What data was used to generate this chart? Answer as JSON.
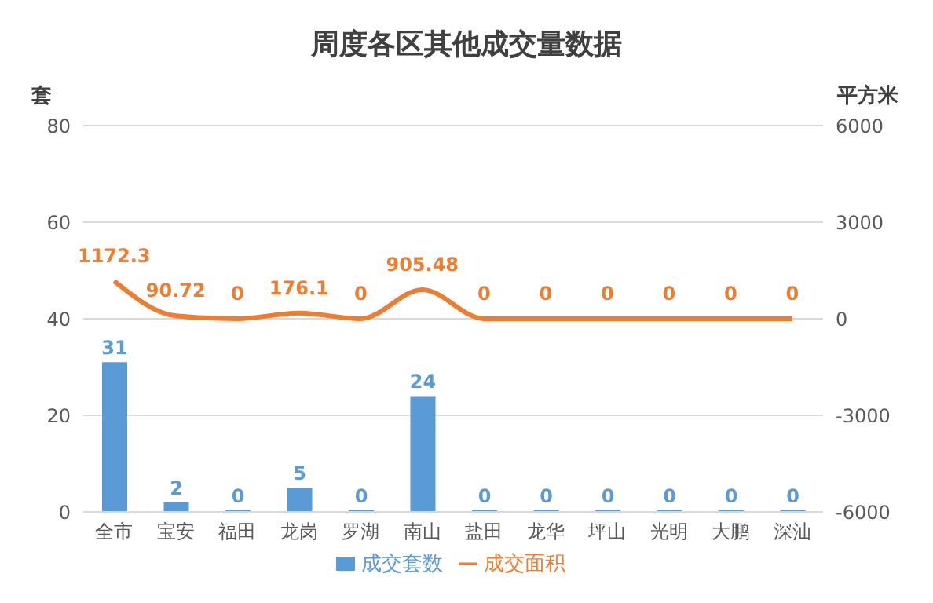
{
  "chart_data": {
    "type": "bar",
    "title": "周度各区其他成交量数据",
    "ylabel": "套",
    "y2label": "平方米",
    "categories": [
      "全市",
      "宝安",
      "福田",
      "龙岗",
      "罗湖",
      "南山",
      "盐田",
      "龙华",
      "坪山",
      "光明",
      "大鹏",
      "深汕"
    ],
    "series": [
      {
        "name": "成交套数",
        "color": "#5b9bd5",
        "values": [
          31,
          2,
          0,
          5,
          0,
          24,
          0,
          0,
          0,
          0,
          0,
          0
        ]
      },
      {
        "name": "成交面积",
        "type": "line",
        "axis": "y2",
        "color": "#ed7d31",
        "values": [
          1172.3,
          90.72,
          0,
          176.1,
          0,
          905.48,
          0,
          0,
          0,
          0,
          0,
          0
        ]
      }
    ],
    "ylim": [
      0,
      80
    ],
    "yticks": [
      0,
      20,
      40,
      60,
      80
    ],
    "y2lim": [
      -6000,
      6000
    ],
    "y2ticks": [
      -6000,
      -3000,
      0,
      3000,
      6000
    ],
    "grid": "y",
    "legend": "bottom",
    "data_labels": true,
    "marker": "none"
  }
}
